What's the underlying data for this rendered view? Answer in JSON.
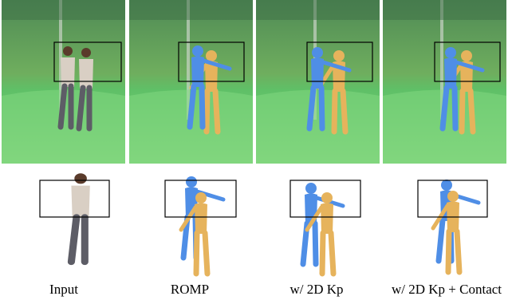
{
  "captions": [
    "Input",
    "ROMP",
    "w/ 2D Kp",
    "w/ 2D Kp + Contact"
  ]
}
